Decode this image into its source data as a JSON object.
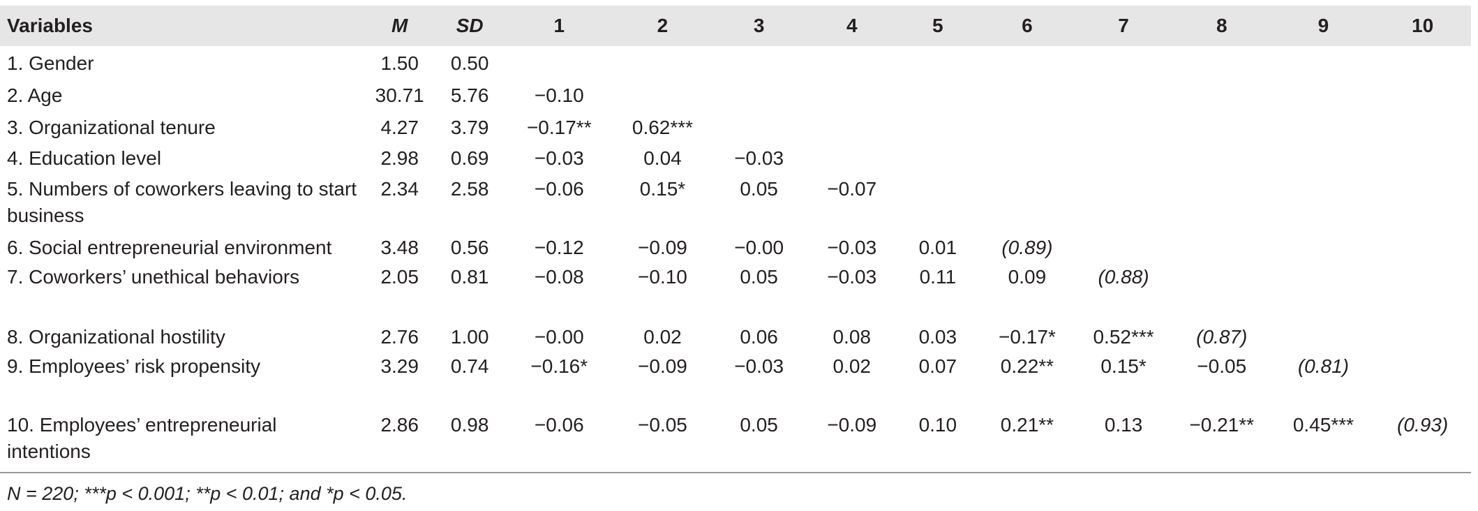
{
  "table": {
    "headers": [
      "Variables",
      "M",
      "SD",
      "1",
      "2",
      "3",
      "4",
      "5",
      "6",
      "7",
      "8",
      "9",
      "10"
    ],
    "rows": [
      {
        "variable": "1. Gender",
        "m": "1.50",
        "sd": "0.50",
        "c": [
          "",
          "",
          "",
          "",
          "",
          "",
          "",
          "",
          "",
          ""
        ]
      },
      {
        "variable": "2. Age",
        "m": "30.71",
        "sd": "5.76",
        "c": [
          "−0.10",
          "",
          "",
          "",
          "",
          "",
          "",
          "",
          "",
          ""
        ]
      },
      {
        "variable": "3. Organizational tenure",
        "m": "4.27",
        "sd": "3.79",
        "c": [
          "−0.17**",
          "0.62***",
          "",
          "",
          "",
          "",
          "",
          "",
          "",
          ""
        ]
      },
      {
        "variable": "4. Education level",
        "m": "2.98",
        "sd": "0.69",
        "c": [
          "−0.03",
          "0.04",
          "−0.03",
          "",
          "",
          "",
          "",
          "",
          "",
          ""
        ]
      },
      {
        "variable": "5. Numbers of coworkers leaving to start business",
        "m": "2.34",
        "sd": "2.58",
        "c": [
          "−0.06",
          "0.15*",
          "0.05",
          "−0.07",
          "",
          "",
          "",
          "",
          "",
          ""
        ]
      },
      {
        "variable": "6. Social entrepreneurial environment",
        "m": "3.48",
        "sd": "0.56",
        "c": [
          "−0.12",
          "−0.09",
          "−0.00",
          "−0.03",
          "0.01",
          "(0.89)",
          "",
          "",
          "",
          ""
        ]
      },
      {
        "variable": "7. Coworkers’ unethical behaviors",
        "m": "2.05",
        "sd": "0.81",
        "c": [
          "−0.08",
          "−0.10",
          "0.05",
          "−0.03",
          "0.11",
          "0.09",
          "(0.88)",
          "",
          "",
          ""
        ]
      },
      {
        "variable": "8. Organizational hostility",
        "m": "2.76",
        "sd": "1.00",
        "c": [
          "−0.00",
          "0.02",
          "0.06",
          "0.08",
          "0.03",
          "−0.17*",
          "0.52***",
          "(0.87)",
          "",
          ""
        ]
      },
      {
        "variable": "9. Employees’ risk propensity",
        "m": "3.29",
        "sd": "0.74",
        "c": [
          "−0.16*",
          "−0.09",
          "−0.03",
          "0.02",
          "0.07",
          "0.22**",
          "0.15*",
          "−0.05",
          "(0.81)",
          ""
        ]
      },
      {
        "variable": "10. Employees’ entrepreneurial intentions",
        "m": "2.86",
        "sd": "0.98",
        "c": [
          "−0.06",
          "−0.05",
          "0.05",
          "−0.09",
          "0.10",
          "0.21**",
          "0.13",
          "−0.21**",
          "0.45***",
          "(0.93)"
        ]
      }
    ],
    "note": "N = 220; ***p < 0.001; **p < 0.01; and *p < 0.05."
  }
}
